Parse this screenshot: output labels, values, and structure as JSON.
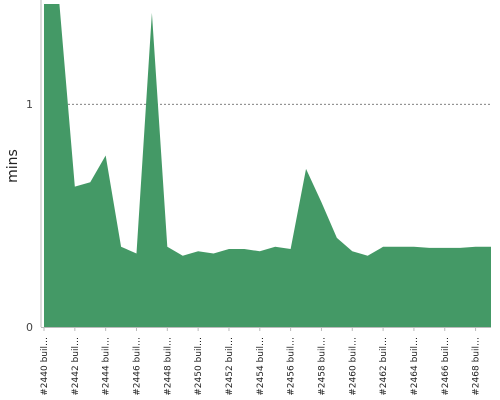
{
  "chart_data": {
    "type": "area",
    "ylabel": "mins",
    "yticks": [
      0,
      1
    ],
    "ylim": [
      0,
      1.45
    ],
    "reference_line": 1,
    "fill_color": "#449966",
    "x_tick_labels": [
      "#2440 buil…",
      "#2442 buil…",
      "#2444 buil…",
      "#2446 buil…",
      "#2448 buil…",
      "#2450 buil…",
      "#2452 buil…",
      "#2454 buil…",
      "#2456 buil…",
      "#2458 buil…",
      "#2460 buil…",
      "#2462 buil…",
      "#2464 buil…",
      "#2466 buil…",
      "#2468 buil…"
    ],
    "x": [
      2440,
      2441,
      2442,
      2443,
      2444,
      2445,
      2446,
      2447,
      2448,
      2449,
      2450,
      2451,
      2452,
      2453,
      2454,
      2455,
      2456,
      2457,
      2458,
      2459,
      2460,
      2461,
      2462,
      2463,
      2464,
      2465,
      2466,
      2467,
      2468,
      2469
    ],
    "values": [
      1.48,
      1.48,
      0.63,
      0.65,
      0.77,
      0.36,
      0.33,
      1.41,
      0.36,
      0.32,
      0.34,
      0.33,
      0.35,
      0.35,
      0.34,
      0.36,
      0.35,
      0.71,
      0.56,
      0.4,
      0.34,
      0.32,
      0.36,
      0.36,
      0.36,
      0.355,
      0.355,
      0.355,
      0.36,
      0.36
    ]
  }
}
